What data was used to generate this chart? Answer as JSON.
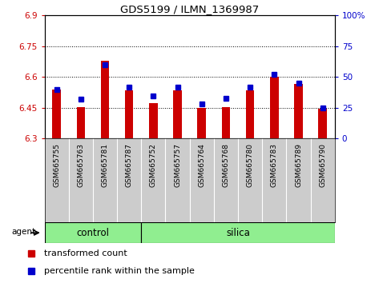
{
  "title": "GDS5199 / ILMN_1369987",
  "samples": [
    "GSM665755",
    "GSM665763",
    "GSM665781",
    "GSM665787",
    "GSM665752",
    "GSM665757",
    "GSM665764",
    "GSM665768",
    "GSM665780",
    "GSM665783",
    "GSM665789",
    "GSM665790"
  ],
  "transformed_count": [
    6.54,
    6.455,
    6.68,
    6.535,
    6.475,
    6.535,
    6.45,
    6.455,
    6.535,
    6.6,
    6.565,
    6.445
  ],
  "percentile_rank": [
    40,
    32,
    60,
    42,
    35,
    42,
    28,
    33,
    42,
    52,
    45,
    25
  ],
  "y_min": 6.3,
  "y_max": 6.9,
  "y_ticks": [
    6.3,
    6.45,
    6.6,
    6.75,
    6.9
  ],
  "y_tick_labels": [
    "6.3",
    "6.45",
    "6.6",
    "6.75",
    "6.9"
  ],
  "y2_ticks": [
    0,
    25,
    50,
    75,
    100
  ],
  "y2_tick_labels": [
    "0",
    "25",
    "50",
    "75",
    "100%"
  ],
  "bar_color": "#cc0000",
  "marker_color": "#0000cc",
  "bar_bottom": 6.3,
  "control_count": 4,
  "silica_count": 8,
  "bg_color": "#ffffff",
  "xtick_bg_color": "#cccccc",
  "group_bg_color": "#90ee90",
  "left_tick_color": "#cc0000",
  "right_tick_color": "#0000cc",
  "grid_dotted_at": [
    6.45,
    6.6,
    6.75
  ]
}
